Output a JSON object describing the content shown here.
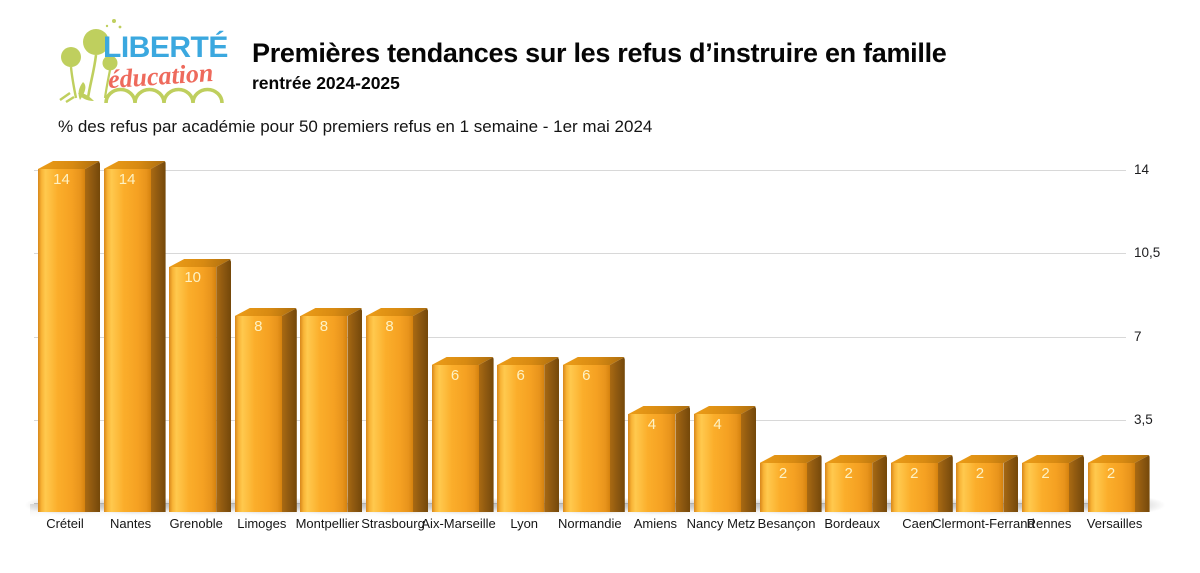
{
  "logo": {
    "line1": "LIBERTÉ",
    "line2": "éducation",
    "colors": {
      "green": "#BFCF5E",
      "blue": "#3BA8DF",
      "coral": "#EE6A5C"
    }
  },
  "header": {
    "title": "Premières tendances sur les refus d’instruire en famille",
    "subtitle": "rentrée 2024-2025"
  },
  "caption": "% des refus par académie pour 50 premiers refus en 1 semaine - 1er mai 2024",
  "chart_data": {
    "type": "bar",
    "title": "Premières tendances sur les refus d’instruire en famille",
    "subtitle": "rentrée 2024-2025",
    "caption": "% des refus par académie pour 50 premiers refus en 1 semaine - 1er mai 2024",
    "categories": [
      "Créteil",
      "Nantes",
      "Grenoble",
      "Limoges",
      "Montpellier",
      "Strasbourg",
      "Aix-Marseille",
      "Lyon",
      "Normandie",
      "Amiens",
      "Nancy Metz",
      "Besançon",
      "Bordeaux",
      "Caen",
      "Clermont-Ferrand",
      "Rennes",
      "Versailles"
    ],
    "values": [
      14,
      14,
      10,
      8,
      8,
      8,
      6,
      6,
      6,
      4,
      4,
      2,
      2,
      2,
      2,
      2,
      2
    ],
    "value_labels": [
      "14",
      "14",
      "10",
      "8",
      "8",
      "8",
      "6",
      "6",
      "6",
      "4",
      "4",
      "2",
      "2",
      "2",
      "2",
      "2",
      "2"
    ],
    "xlabel": "",
    "ylabel": "",
    "ylim": [
      0,
      14
    ],
    "yticks": [
      {
        "label": "14",
        "value": 14
      },
      {
        "label": "10,5",
        "value": 10.5
      },
      {
        "label": "7",
        "value": 7
      },
      {
        "label": "3,5",
        "value": 3.5
      },
      {
        "label": "",
        "value": 0
      }
    ],
    "grid": true,
    "legend": false,
    "style": "3d-bars",
    "bar_color": "#F5A122",
    "bar_side_color": "#8A5610",
    "bar_top_color": "#D88A12",
    "value_label_color": "#FDF2C4",
    "gridline_color": "#D8D8D8"
  }
}
